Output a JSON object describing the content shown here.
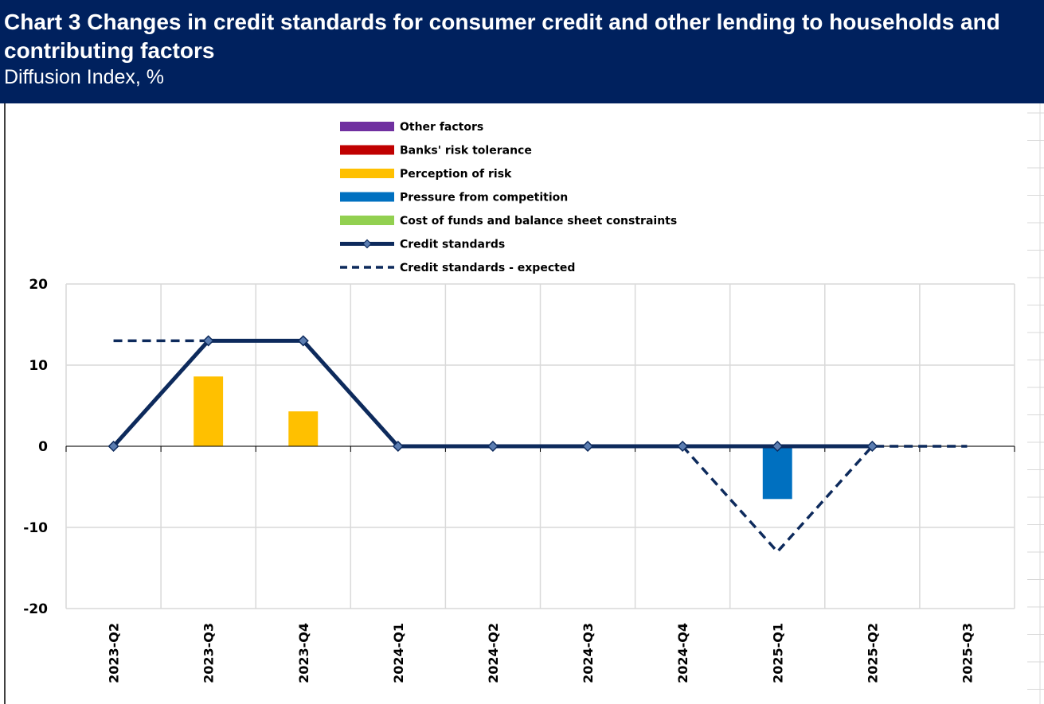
{
  "header": {
    "title": "Chart 3 Changes in credit standards for consumer credit and other lending to households and contributing factors",
    "subtitle": "Diffusion Index, %"
  },
  "chart_data": {
    "type": "bar",
    "categories": [
      "2023-Q2",
      "2023-Q3",
      "2023-Q4",
      "2024-Q1",
      "2024-Q2",
      "2024-Q3",
      "2024-Q4",
      "2025-Q1",
      "2025-Q2",
      "2025-Q3"
    ],
    "ylim": [
      -20,
      20
    ],
    "yticks": [
      20,
      10,
      0,
      -10,
      -20
    ],
    "grid": true,
    "legend_position": "top",
    "series": [
      {
        "name": "Other factors",
        "kind": "bar",
        "color": "#7030a0",
        "values": [
          0,
          0,
          0,
          0,
          0,
          0,
          0,
          0,
          0,
          null
        ]
      },
      {
        "name": "Banks' risk tolerance",
        "kind": "bar",
        "color": "#c00000",
        "values": [
          0,
          0,
          0,
          0,
          0,
          0,
          0,
          0,
          0,
          null
        ]
      },
      {
        "name": "Perception of risk",
        "kind": "bar",
        "color": "#ffc000",
        "values": [
          0,
          8.6,
          4.3,
          0,
          0,
          0,
          0,
          0,
          0,
          null
        ]
      },
      {
        "name": "Pressure from competition",
        "kind": "bar",
        "color": "#0070c0",
        "values": [
          0,
          0,
          0,
          0,
          0,
          0,
          0,
          -6.5,
          0,
          null
        ]
      },
      {
        "name": "Cost of funds and balance sheet constraints",
        "kind": "bar",
        "color": "#92d050",
        "values": [
          0,
          0,
          0,
          0,
          0,
          0,
          0,
          0,
          0,
          null
        ]
      },
      {
        "name": "Credit standards",
        "kind": "line",
        "color": "#0d2a5c",
        "values": [
          0,
          13,
          13,
          0,
          0,
          0,
          0,
          0,
          0,
          null
        ]
      },
      {
        "name": "Credit standards - expected",
        "kind": "dashed",
        "color": "#0d2a5c",
        "values": [
          13,
          13,
          13,
          0,
          0,
          0,
          0,
          -13,
          0,
          0
        ]
      }
    ]
  }
}
